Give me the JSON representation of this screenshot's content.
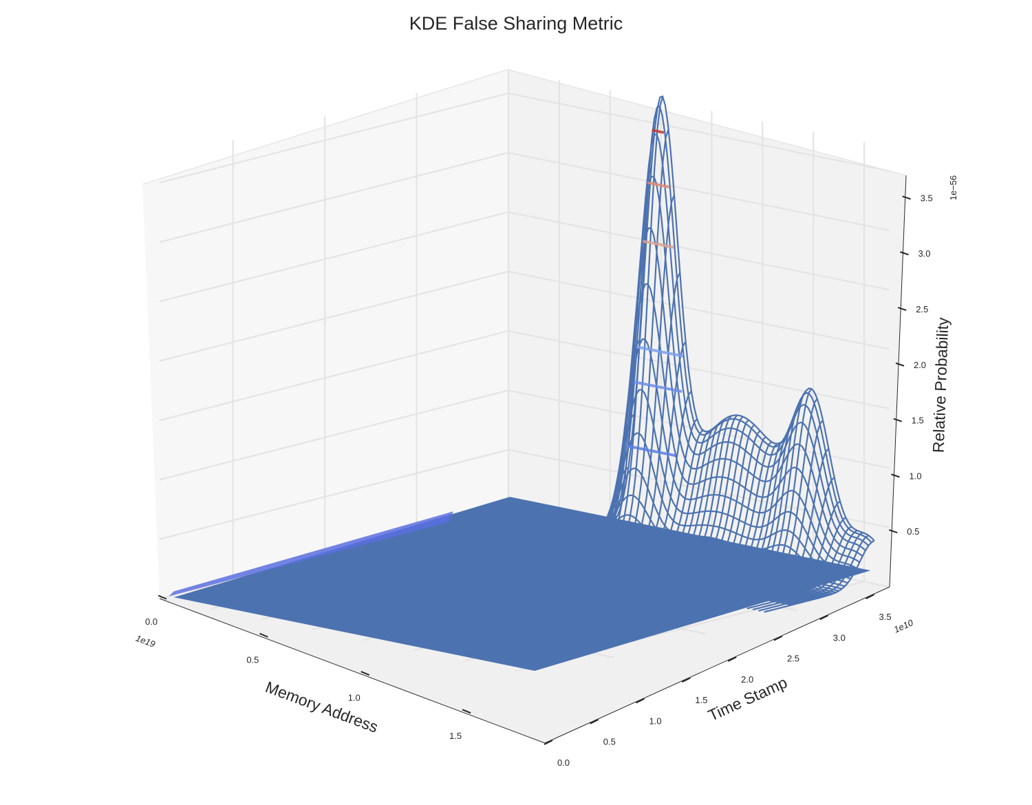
{
  "chart_data": {
    "type": "surface3d",
    "title": "KDE False Sharing Metric",
    "xlabel": "Memory Address",
    "ylabel": "Time Stamp",
    "zlabel": "Relative Probability",
    "x_multiplier": "1e19",
    "y_multiplier": "1e10",
    "z_multiplier": "1e−56",
    "x_ticks": [
      "0.0",
      "0.5",
      "1.0",
      "1.5"
    ],
    "y_ticks": [
      "0.0",
      "0.5",
      "1.0",
      "1.5",
      "2.0",
      "2.5",
      "3.0",
      "3.5"
    ],
    "z_ticks": [
      "0.5",
      "1.0",
      "1.5",
      "2.0",
      "2.5",
      "3.0",
      "3.5"
    ],
    "xlim": [
      0,
      1.9
    ],
    "ylim": [
      0,
      3.75
    ],
    "zlim": [
      0,
      3.7
    ],
    "peak": {
      "x": 0,
      "y": 1.5,
      "z": 3.5
    },
    "secondary_peak": {
      "x": 0,
      "y": 3.0,
      "z": 1.5
    },
    "grid": true,
    "colors": {
      "surface": "#4c72b0",
      "wireframe": "#4c72b0",
      "contour_low": "#5b7fe0",
      "contour_high": "#c0392b"
    }
  }
}
